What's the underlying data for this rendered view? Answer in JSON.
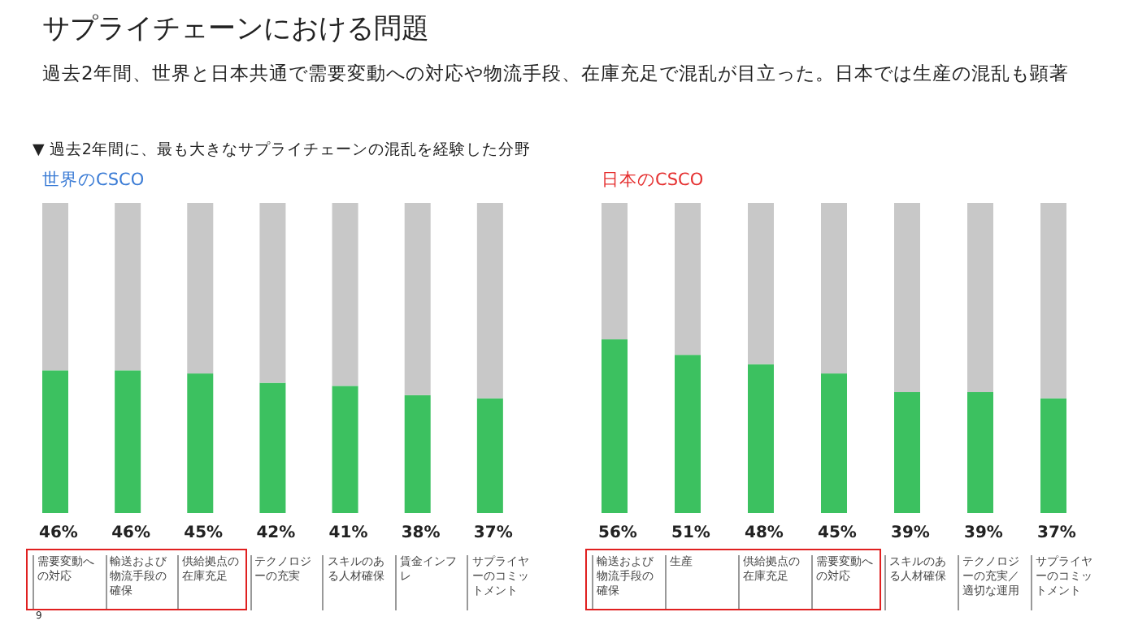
{
  "chart_data": [
    {
      "type": "bar",
      "stacked": true,
      "title": "世界のCSCO",
      "annotations": [
        "サプライチェーンにおける問題",
        "過去2年間、世界と日本共通で需要変動への対応や物流手段、在庫充足で混乱が目立った。日本では生産の混乱も顕著",
        "▼ 過去2年間に、最も大きなサプライチェーンの混乱を経験した分野",
        "9"
      ],
      "categories": [
        "需要変動への対応",
        "輸送および物流手段の確保",
        "供給拠点の在庫充足",
        "テクノロジーの充実",
        "スキルのある人材確保",
        "賃金インフレ",
        "サプライヤーのコミットメント"
      ],
      "series": [
        {
          "color": "#3cc160",
          "values": [
            46,
            46,
            45,
            42,
            41,
            38,
            37
          ],
          "value_labels": [
            "46%",
            "46%",
            "45%",
            "42%",
            "41%",
            "38%",
            "37%"
          ]
        },
        {
          "color": "#c8c8c8",
          "values": [
            54,
            54,
            55,
            58,
            59,
            62,
            63
          ]
        }
      ]
    },
    {
      "type": "bar",
      "stacked": true,
      "title": "日本のCSCO",
      "categories": [
        "輸送および物流手段の確保",
        "生産",
        "供給拠点の在庫充足",
        "需要変動への対応",
        "スキルのある人材確保",
        "テクノロジーの充実／適切な運用",
        "サプライヤーのコミットメント"
      ],
      "series": [
        {
          "color": "#3cc160",
          "values": [
            56,
            51,
            48,
            45,
            39,
            39,
            37
          ],
          "value_labels": [
            "56%",
            "51%",
            "48%",
            "45%",
            "39%",
            "39%",
            "37%"
          ]
        },
        {
          "color": "#c8c8c8",
          "values": [
            44,
            49,
            52,
            55,
            61,
            61,
            63
          ]
        }
      ]
    }
  ]
}
